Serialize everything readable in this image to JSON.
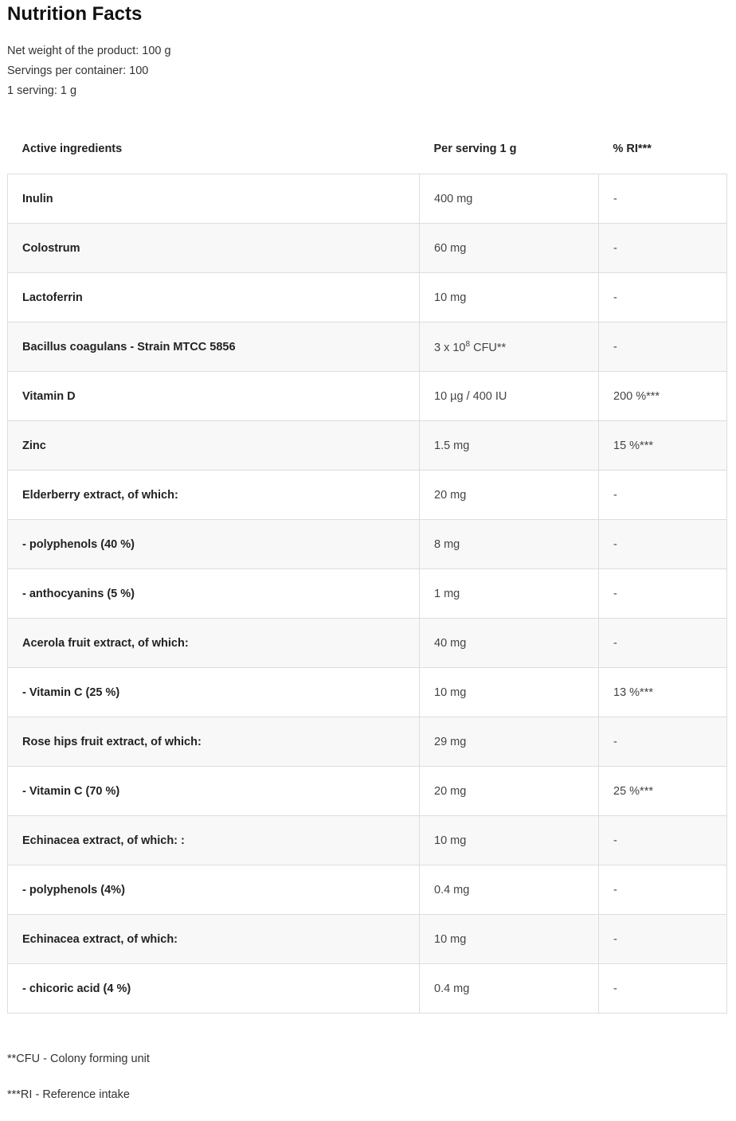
{
  "title": "Nutrition Facts",
  "meta": [
    "Net weight of the product: 100 g",
    "Servings per container: 100",
    "1 serving: 1 g"
  ],
  "headers": [
    "Active ingredients",
    "Per serving 1 g",
    "% RI***"
  ],
  "rows": [
    {
      "name": "Inulin",
      "value": "400 mg",
      "ri": "-"
    },
    {
      "name": "Colostrum",
      "value": "60 mg",
      "ri": "-"
    },
    {
      "name": "Lactoferrin",
      "value": "10 mg",
      "ri": "-"
    },
    {
      "name": "Bacillus coagulans - Strain MTCC 5856",
      "value": "3 x 10",
      "value_sup": "8",
      "value_suffix": " CFU**",
      "ri": "-"
    },
    {
      "name": "Vitamin D",
      "value": "10 µg / 400 IU",
      "ri": "200 %***"
    },
    {
      "name": "Zinc",
      "value": "1.5 mg",
      "ri": "15 %***"
    },
    {
      "name": "Elderberry extract, of which:",
      "value": "20 mg",
      "ri": "-"
    },
    {
      "name": "- polyphenols (40 %)",
      "value": "8 mg",
      "ri": "-"
    },
    {
      "name": "- anthocyanins (5 %)",
      "value": "1 mg",
      "ri": "-"
    },
    {
      "name": "Acerola fruit extract, of which:",
      "value": "40 mg",
      "ri": "-"
    },
    {
      "name": "- Vitamin C (25 %)",
      "value": "10 mg",
      "ri": "13 %***"
    },
    {
      "name": "Rose hips fruit extract, of which:",
      "value": "29 mg",
      "ri": "-"
    },
    {
      "name": "- Vitamin C (70 %)",
      "value": "20 mg",
      "ri": "25 %***"
    },
    {
      "name": "Echinacea extract, of which: :",
      "value": "10 mg",
      "ri": "-"
    },
    {
      "name": "- polyphenols (4%)",
      "value": "0.4 mg",
      "ri": "-"
    },
    {
      "name": "Echinacea extract, of which:",
      "value": "10 mg",
      "ri": "-"
    },
    {
      "name": "- chicoric acid (4 %)",
      "value": "0.4 mg",
      "ri": "-"
    }
  ],
  "footnotes": [
    "**CFU - Colony forming unit",
    "***RI - Reference intake"
  ]
}
